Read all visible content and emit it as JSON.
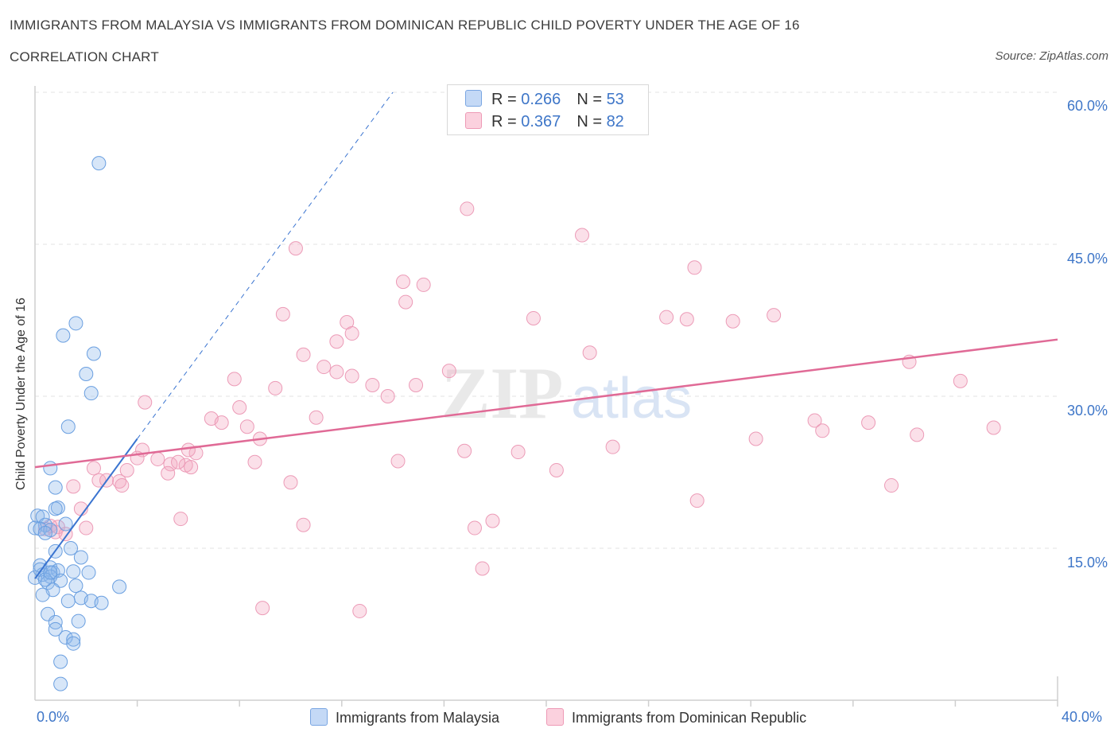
{
  "header": {
    "title": "IMMIGRANTS FROM MALAYSIA VS IMMIGRANTS FROM DOMINICAN REPUBLIC CHILD POVERTY UNDER THE AGE OF 16",
    "subtitle": "CORRELATION CHART",
    "source": "Source: ZipAtlas.com"
  },
  "watermark": {
    "zip": "ZIP",
    "atlas": "atlas"
  },
  "legend": {
    "row1": {
      "r_label": "R = ",
      "r_value": "0.266",
      "n_label": "N = ",
      "n_value": "53"
    },
    "row2": {
      "r_label": "R = ",
      "r_value": "0.367",
      "n_label": "N = ",
      "n_value": "82"
    }
  },
  "bottom_legend": {
    "series1": "Immigrants from Malaysia",
    "series2": "Immigrants from Dominican Republic"
  },
  "axes": {
    "ylabel": "Child Poverty Under the Age of 16",
    "y_ticks": [
      "60.0%",
      "45.0%",
      "30.0%",
      "15.0%"
    ],
    "x_min_label": "0.0%",
    "x_max_label": "40.0%"
  },
  "chart_data": {
    "type": "scatter",
    "title": "IMMIGRANTS FROM MALAYSIA VS IMMIGRANTS FROM DOMINICAN REPUBLIC CHILD POVERTY UNDER THE AGE OF 16",
    "xlabel": "",
    "ylabel": "Child Poverty Under the Age of 16",
    "xlim": [
      0,
      40
    ],
    "ylim": [
      0,
      60
    ],
    "y_ticks": [
      15,
      30,
      45,
      60
    ],
    "grid": true,
    "colors": {
      "malaysia": "#6a9fe0",
      "dominican": "#ee8faf",
      "malaysia_line": "#3a74d0",
      "dominican_line": "#e06a96"
    },
    "series": [
      {
        "name": "Immigrants from Malaysia",
        "R": 0.266,
        "N": 53,
        "trend": {
          "x0": 0.0,
          "y0": 12.0,
          "x1": 4.0,
          "y1": 25.8,
          "dash_x1": 14.0,
          "dash_y1": 60.0
        },
        "points": [
          [
            2.5,
            53.0
          ],
          [
            1.6,
            37.2
          ],
          [
            1.1,
            36.0
          ],
          [
            2.3,
            34.2
          ],
          [
            2.0,
            32.2
          ],
          [
            2.2,
            30.3
          ],
          [
            1.3,
            27.0
          ],
          [
            0.6,
            22.9
          ],
          [
            0.8,
            21.0
          ],
          [
            0.1,
            18.2
          ],
          [
            0.3,
            18.1
          ],
          [
            0.9,
            19.0
          ],
          [
            0.8,
            18.9
          ],
          [
            0.4,
            17.3
          ],
          [
            0.0,
            17.0
          ],
          [
            0.2,
            16.9
          ],
          [
            1.2,
            17.4
          ],
          [
            0.6,
            16.8
          ],
          [
            0.4,
            16.5
          ],
          [
            0.8,
            14.7
          ],
          [
            1.4,
            15.0
          ],
          [
            1.8,
            14.1
          ],
          [
            0.2,
            13.3
          ],
          [
            0.6,
            13.1
          ],
          [
            0.7,
            12.6
          ],
          [
            0.9,
            12.8
          ],
          [
            1.5,
            12.7
          ],
          [
            2.1,
            12.6
          ],
          [
            0.3,
            12.4
          ],
          [
            0.6,
            12.2
          ],
          [
            0.0,
            12.1
          ],
          [
            1.0,
            11.8
          ],
          [
            0.5,
            11.6
          ],
          [
            1.6,
            11.3
          ],
          [
            3.3,
            11.2
          ],
          [
            0.7,
            10.9
          ],
          [
            0.3,
            10.4
          ],
          [
            1.8,
            10.1
          ],
          [
            2.2,
            9.8
          ],
          [
            2.6,
            9.6
          ],
          [
            1.3,
            9.8
          ],
          [
            0.5,
            8.5
          ],
          [
            1.7,
            7.8
          ],
          [
            0.8,
            7.7
          ],
          [
            0.8,
            7.0
          ],
          [
            1.2,
            6.2
          ],
          [
            1.5,
            6.0
          ],
          [
            1.5,
            5.6
          ],
          [
            1.0,
            3.8
          ],
          [
            1.0,
            1.6
          ],
          [
            0.2,
            12.9
          ],
          [
            0.4,
            11.9
          ],
          [
            0.6,
            12.6
          ]
        ]
      },
      {
        "name": "Immigrants from Dominican Republic",
        "R": 0.367,
        "N": 82,
        "trend": {
          "x0": 0.0,
          "y0": 23.0,
          "x1": 40.0,
          "y1": 35.6
        },
        "points": [
          [
            16.9,
            48.5
          ],
          [
            21.4,
            45.9
          ],
          [
            10.2,
            44.6
          ],
          [
            25.8,
            42.7
          ],
          [
            14.4,
            41.3
          ],
          [
            15.2,
            41.0
          ],
          [
            14.5,
            39.3
          ],
          [
            9.7,
            38.1
          ],
          [
            19.5,
            37.7
          ],
          [
            24.7,
            37.8
          ],
          [
            25.5,
            37.6
          ],
          [
            27.3,
            37.4
          ],
          [
            28.9,
            38.0
          ],
          [
            12.2,
            37.3
          ],
          [
            12.4,
            36.2
          ],
          [
            11.8,
            35.4
          ],
          [
            10.5,
            34.1
          ],
          [
            21.7,
            34.3
          ],
          [
            34.2,
            33.4
          ],
          [
            11.3,
            32.9
          ],
          [
            11.8,
            32.4
          ],
          [
            16.2,
            32.5
          ],
          [
            12.4,
            32.0
          ],
          [
            7.8,
            31.7
          ],
          [
            36.2,
            31.5
          ],
          [
            13.2,
            31.1
          ],
          [
            14.9,
            31.1
          ],
          [
            9.4,
            30.8
          ],
          [
            13.8,
            30.0
          ],
          [
            4.3,
            29.4
          ],
          [
            8.0,
            28.9
          ],
          [
            6.9,
            27.8
          ],
          [
            7.3,
            27.4
          ],
          [
            11.0,
            27.9
          ],
          [
            8.3,
            27.0
          ],
          [
            30.5,
            27.6
          ],
          [
            30.8,
            26.6
          ],
          [
            32.6,
            27.4
          ],
          [
            37.5,
            26.9
          ],
          [
            34.5,
            26.2
          ],
          [
            28.2,
            25.8
          ],
          [
            8.8,
            25.8
          ],
          [
            22.6,
            25.0
          ],
          [
            16.8,
            24.6
          ],
          [
            18.9,
            24.5
          ],
          [
            6.3,
            24.4
          ],
          [
            6.0,
            24.7
          ],
          [
            4.2,
            24.7
          ],
          [
            4.0,
            23.9
          ],
          [
            4.8,
            23.8
          ],
          [
            5.3,
            23.3
          ],
          [
            5.9,
            23.2
          ],
          [
            5.6,
            23.5
          ],
          [
            6.1,
            23.0
          ],
          [
            8.6,
            23.5
          ],
          [
            14.2,
            23.6
          ],
          [
            2.3,
            22.9
          ],
          [
            3.6,
            22.7
          ],
          [
            20.4,
            22.7
          ],
          [
            5.2,
            22.4
          ],
          [
            2.5,
            21.7
          ],
          [
            3.3,
            21.6
          ],
          [
            2.8,
            21.7
          ],
          [
            3.4,
            21.2
          ],
          [
            10.0,
            21.5
          ],
          [
            1.5,
            21.1
          ],
          [
            33.5,
            21.2
          ],
          [
            25.9,
            19.7
          ],
          [
            1.8,
            18.9
          ],
          [
            5.7,
            17.9
          ],
          [
            17.9,
            17.7
          ],
          [
            10.5,
            17.3
          ],
          [
            17.2,
            17.0
          ],
          [
            2.0,
            17.0
          ],
          [
            0.9,
            17.1
          ],
          [
            0.6,
            17.2
          ],
          [
            0.4,
            16.9
          ],
          [
            0.8,
            16.6
          ],
          [
            1.2,
            16.4
          ],
          [
            17.5,
            13.0
          ],
          [
            8.9,
            9.1
          ],
          [
            12.7,
            8.8
          ]
        ]
      }
    ]
  }
}
